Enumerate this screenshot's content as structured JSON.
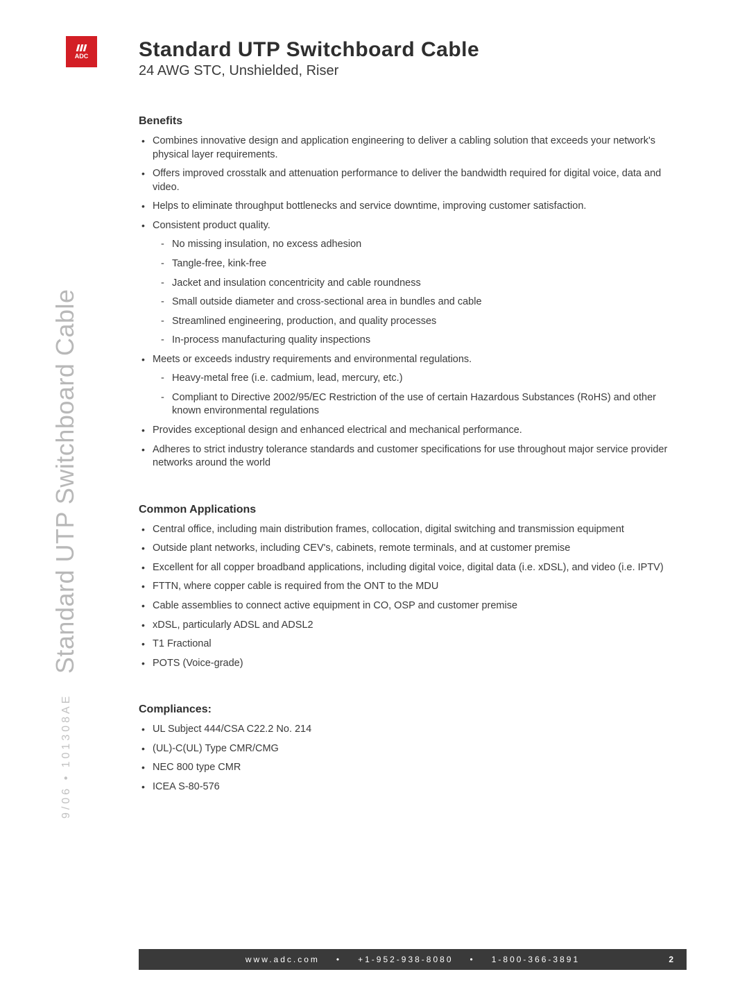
{
  "logo": {
    "text": "ADC"
  },
  "sideText": {
    "code": "9/06 • 101308AE",
    "label": "Standard UTP Switchboard Cable"
  },
  "header": {
    "title": "Standard UTP Switchboard Cable",
    "subtitle": "24 AWG STC, Unshielded, Riser"
  },
  "benefits": {
    "heading": "Benefits",
    "items": [
      {
        "text": "Combines innovative design and application engineering to deliver a cabling solution that exceeds your network's physical layer requirements."
      },
      {
        "text": "Offers improved crosstalk and attenuation performance to deliver the bandwidth required for digital voice, data and video."
      },
      {
        "text": "Helps to eliminate throughput bottlenecks and service downtime, improving customer satisfaction."
      },
      {
        "text": "Consistent product quality.",
        "sub": [
          "No missing insulation, no excess adhesion",
          "Tangle-free, kink-free",
          "Jacket and insulation concentricity and cable roundness",
          "Small outside diameter and cross-sectional area in bundles and cable",
          "Streamlined engineering, production, and quality processes",
          "In-process manufacturing quality inspections"
        ]
      },
      {
        "text": "Meets or exceeds industry requirements and environmental regulations.",
        "sub": [
          "Heavy-metal free (i.e. cadmium, lead, mercury, etc.)",
          "Compliant to Directive 2002/95/EC Restriction of the use of certain Hazardous Substances (RoHS) and other known environmental regulations"
        ]
      },
      {
        "text": "Provides exceptional design and enhanced electrical and mechanical performance."
      },
      {
        "text": "Adheres to strict industry tolerance standards and customer specifications for use throughout major service provider networks around the world"
      }
    ]
  },
  "applications": {
    "heading": "Common Applications",
    "items": [
      "Central office, including main distribution frames, collocation, digital switching and transmission equipment",
      "Outside plant networks, including CEV's, cabinets, remote terminals, and at customer premise",
      "Excellent for all copper broadband applications, including digital voice, digital data (i.e. xDSL), and video (i.e. IPTV)",
      "FTTN, where copper cable is required from the ONT to the MDU",
      "Cable assemblies to connect active equipment in CO, OSP and customer premise",
      "xDSL, particularly ADSL and ADSL2",
      "T1 Fractional",
      "POTS (Voice-grade)"
    ]
  },
  "compliances": {
    "heading": "Compliances:",
    "items": [
      "UL Subject 444/CSA C22.2 No. 214",
      "(UL)-C(UL) Type CMR/CMG",
      "NEC 800 type CMR",
      "ICEA S-80-576"
    ]
  },
  "footer": {
    "website": "www.adc.com",
    "phone1": "+1-952-938-8080",
    "phone2": "1-800-366-3891",
    "page": "2",
    "sep": "•"
  }
}
